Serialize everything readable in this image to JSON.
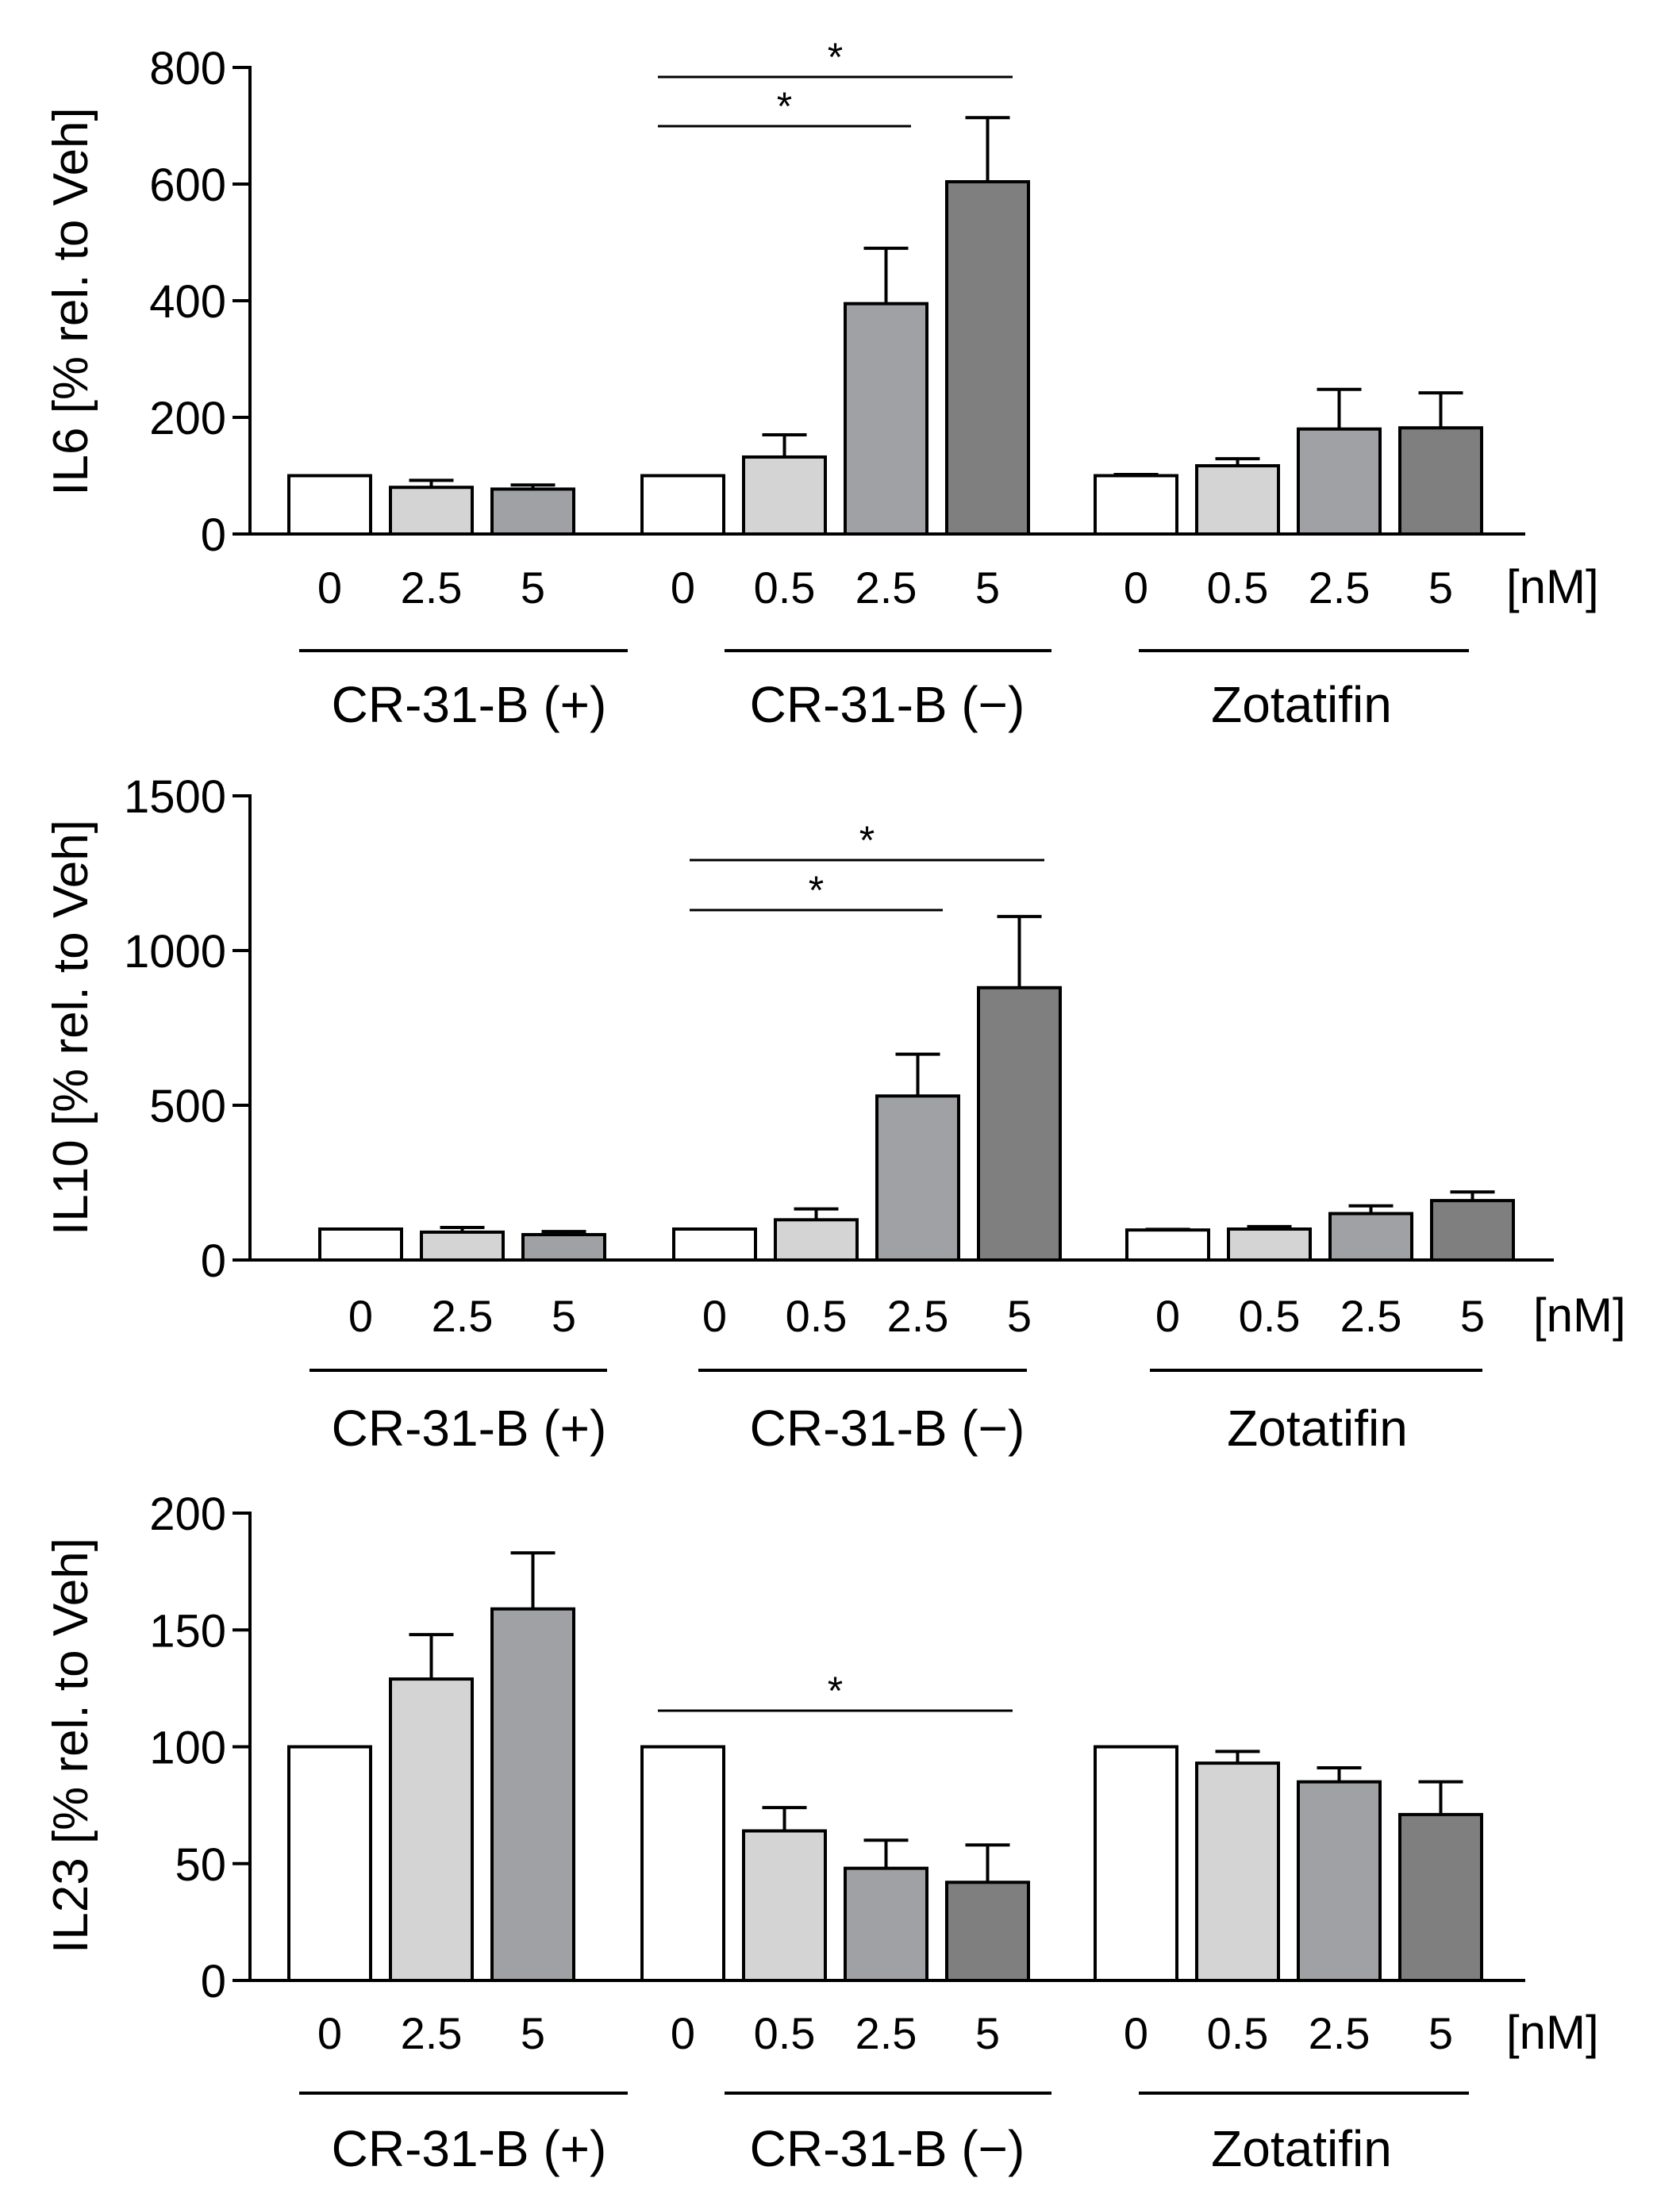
{
  "unit_label": "[nM]",
  "chart_data": [
    {
      "type": "bar",
      "ylabel": "IL6 [% rel. to Veh]",
      "ylim": [
        0,
        800
      ],
      "yticks": [
        0,
        200,
        400,
        600,
        800
      ],
      "groups": [
        {
          "name": "CR-31-B (+)",
          "doses": [
            "0",
            "2.5",
            "5"
          ],
          "values": [
            100,
            80,
            77
          ],
          "errors": [
            0,
            12,
            7
          ]
        },
        {
          "name": "CR-31-B (−)",
          "doses": [
            "0",
            "0.5",
            "2.5",
            "5"
          ],
          "values": [
            100,
            132,
            395,
            604
          ],
          "errors": [
            0,
            38,
            95,
            110
          ]
        },
        {
          "name": "Zotatifin",
          "doses": [
            "0",
            "0.5",
            "2.5",
            "5"
          ],
          "values": [
            100,
            117,
            180,
            182
          ],
          "errors": [
            2,
            12,
            68,
            60
          ]
        }
      ],
      "significance": [
        {
          "label": "*",
          "from": [
            1,
            0
          ],
          "to": [
            1,
            3
          ]
        },
        {
          "label": "*",
          "from": [
            1,
            0
          ],
          "to": [
            1,
            2
          ]
        }
      ]
    },
    {
      "type": "bar",
      "ylabel": "IL10 [% rel. to Veh]",
      "ylim": [
        0,
        1500
      ],
      "yticks": [
        0,
        500,
        1000,
        1500
      ],
      "groups": [
        {
          "name": "CR-31-B (+)",
          "doses": [
            "0",
            "2.5",
            "5"
          ],
          "values": [
            100,
            90,
            82
          ],
          "errors": [
            0,
            15,
            10
          ]
        },
        {
          "name": "CR-31-B (−)",
          "doses": [
            "0",
            "0.5",
            "2.5",
            "5"
          ],
          "values": [
            100,
            130,
            530,
            880
          ],
          "errors": [
            0,
            35,
            135,
            230
          ]
        },
        {
          "name": "Zotatifin",
          "doses": [
            "0",
            "0.5",
            "2.5",
            "5"
          ],
          "values": [
            97,
            100,
            150,
            192
          ],
          "errors": [
            2,
            8,
            25,
            28
          ]
        }
      ],
      "significance": [
        {
          "label": "*",
          "from": [
            1,
            0
          ],
          "to": [
            1,
            3
          ]
        },
        {
          "label": "*",
          "from": [
            1,
            0
          ],
          "to": [
            1,
            2
          ]
        }
      ]
    },
    {
      "type": "bar",
      "ylabel": "IL23 [% rel. to Veh]",
      "ylim": [
        0,
        200
      ],
      "yticks": [
        0,
        50,
        100,
        150,
        200
      ],
      "groups": [
        {
          "name": "CR-31-B (+)",
          "doses": [
            "0",
            "2.5",
            "5"
          ],
          "values": [
            100,
            129,
            159
          ],
          "errors": [
            0,
            19,
            24
          ]
        },
        {
          "name": "CR-31-B (−)",
          "doses": [
            "0",
            "0.5",
            "2.5",
            "5"
          ],
          "values": [
            100,
            64,
            48,
            42
          ],
          "errors": [
            0,
            10,
            12,
            16
          ]
        },
        {
          "name": "Zotatifin",
          "doses": [
            "0",
            "0.5",
            "2.5",
            "5"
          ],
          "values": [
            100,
            93,
            85,
            71
          ],
          "errors": [
            0,
            5,
            6,
            14
          ]
        }
      ],
      "significance": [
        {
          "label": "*",
          "from": [
            1,
            0
          ],
          "to": [
            1,
            3
          ]
        }
      ]
    }
  ]
}
